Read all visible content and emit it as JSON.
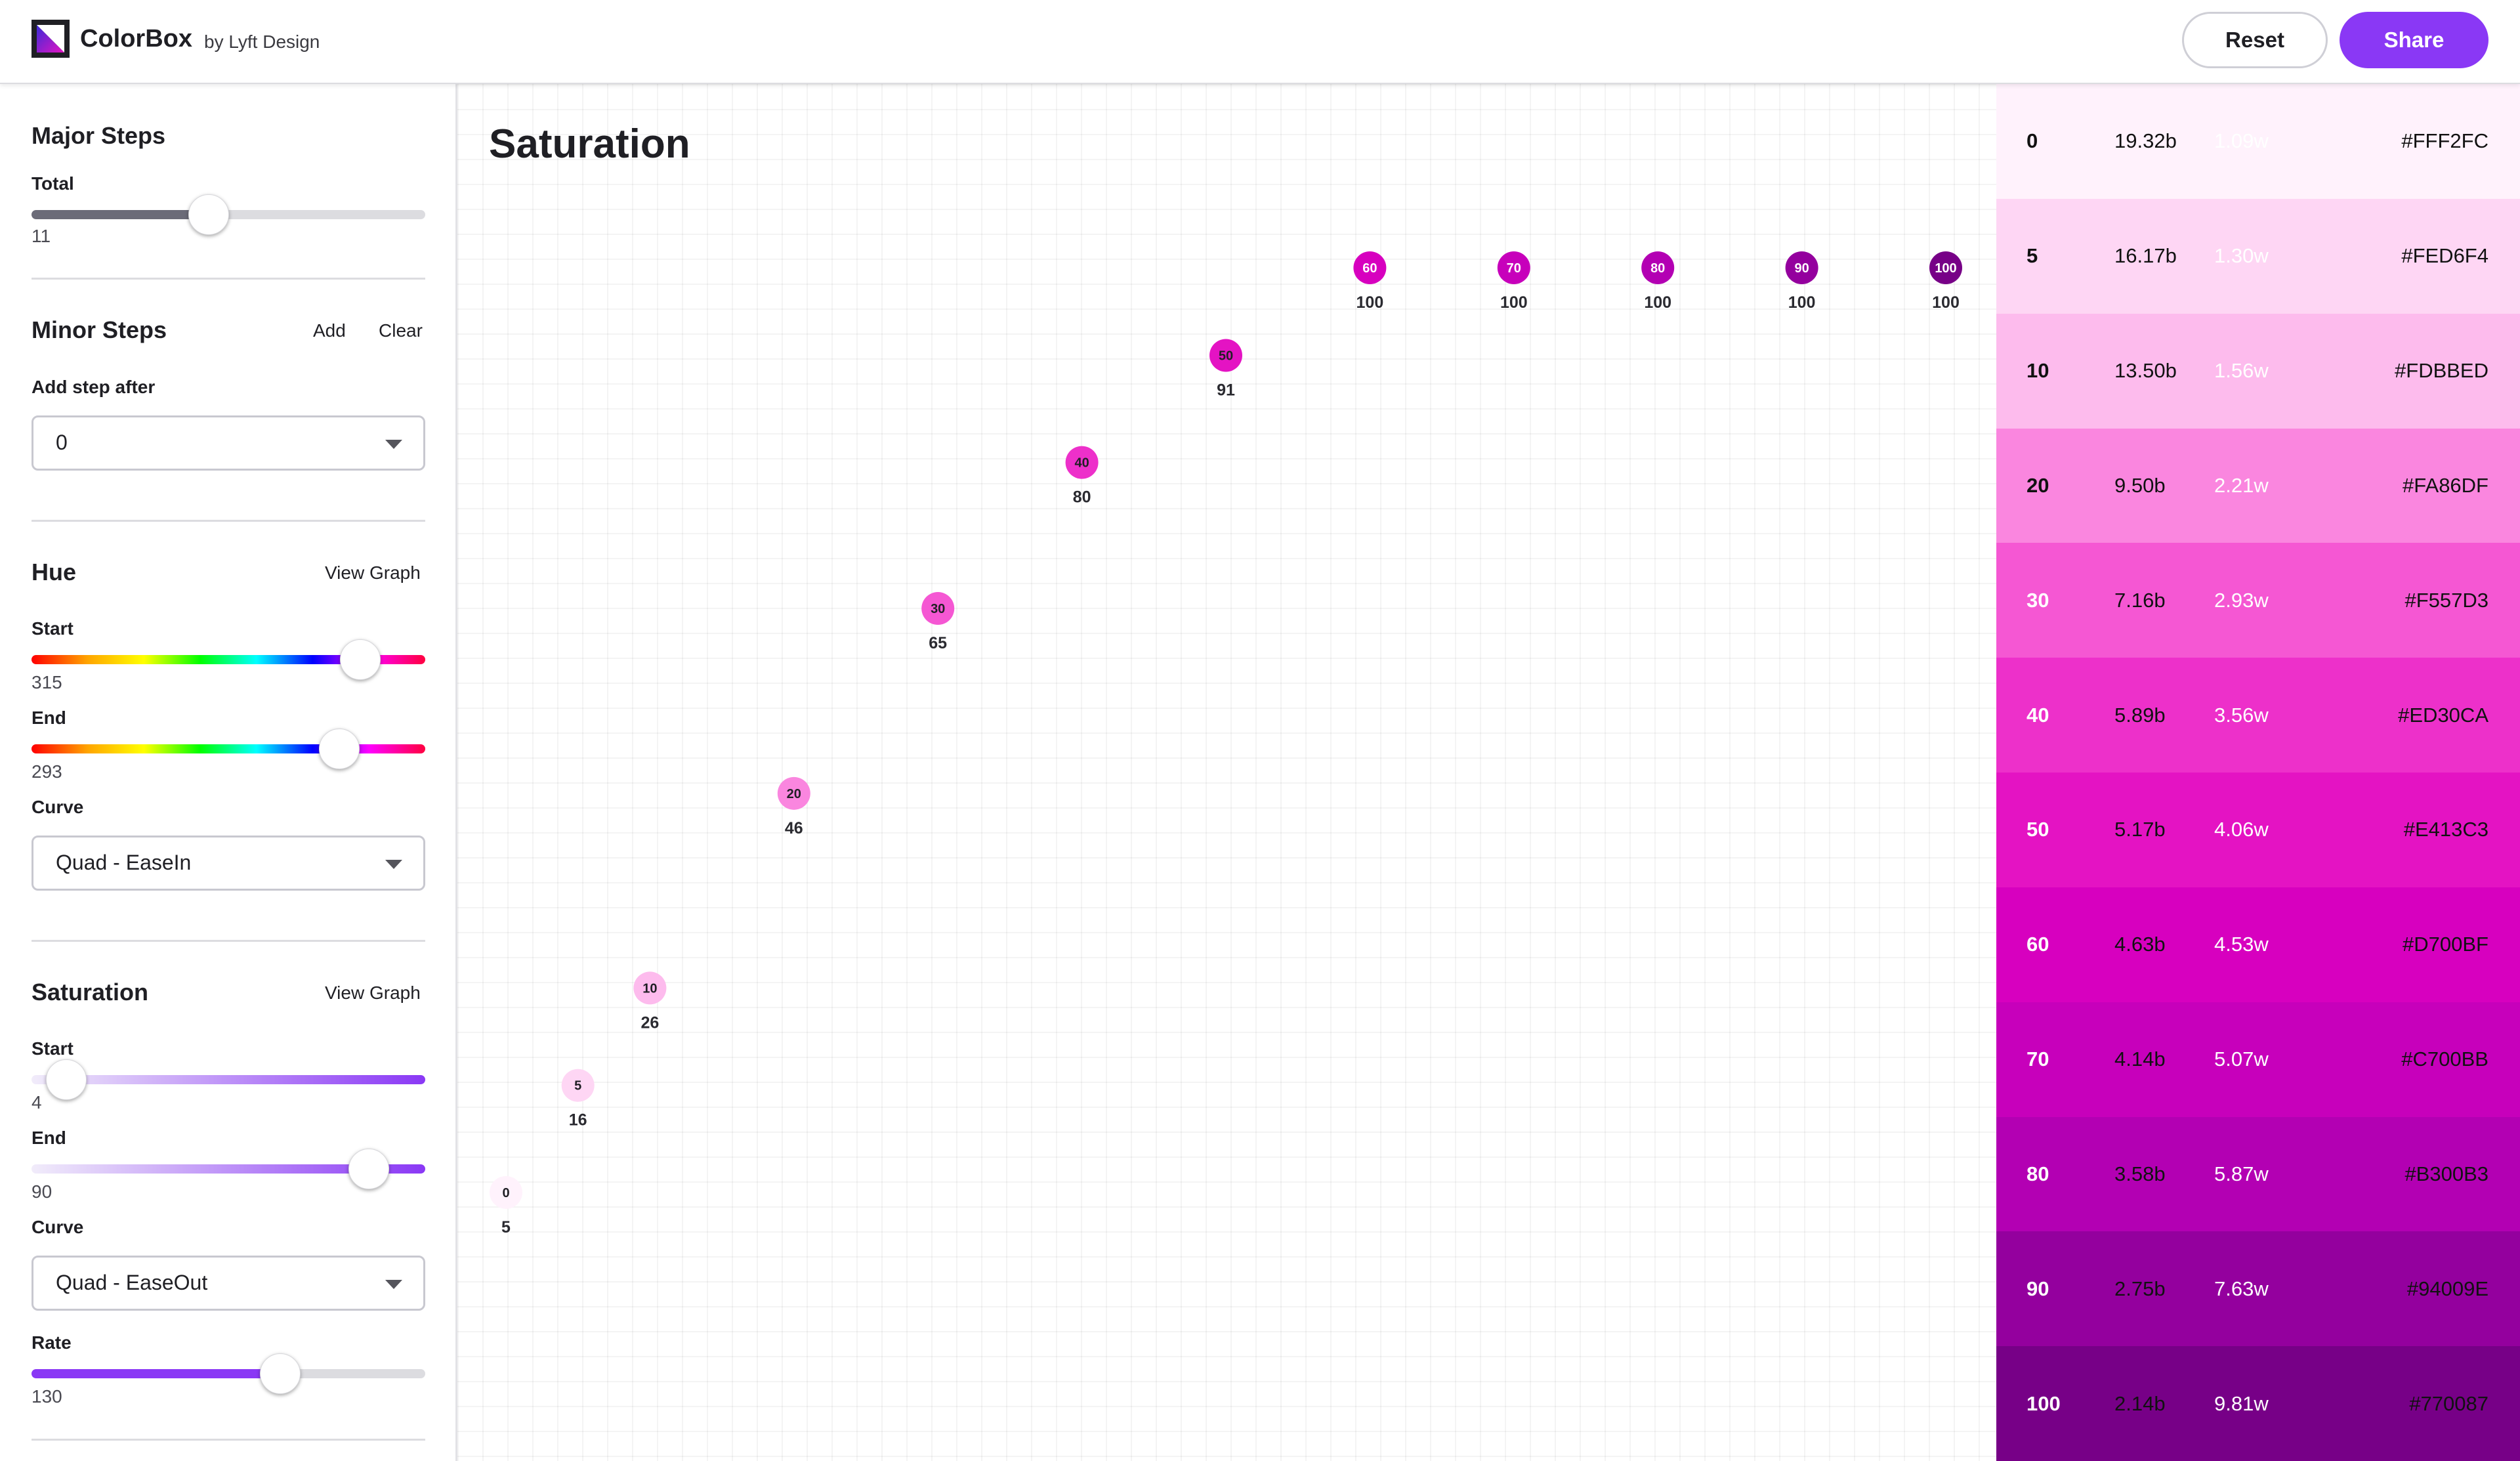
{
  "header": {
    "app_title": "ColorBox",
    "byline": "by Lyft Design",
    "reset_label": "Reset",
    "share_label": "Share",
    "logo_icon": "colorbox-logo-icon"
  },
  "sidebar": {
    "major_steps": {
      "title": "Major Steps",
      "total_label": "Total",
      "total_value": "11",
      "total_numeric": 11
    },
    "minor_steps": {
      "title": "Minor Steps",
      "add_label": "Add",
      "clear_label": "Clear",
      "add_after_label": "Add step after",
      "add_after_value": "0"
    },
    "hue": {
      "title": "Hue",
      "view_graph_label": "View Graph",
      "start_label": "Start",
      "start_value": "315",
      "start_numeric": 315,
      "end_label": "End",
      "end_value": "293",
      "end_numeric": 293,
      "curve_label": "Curve",
      "curve_value": "Quad - EaseIn"
    },
    "saturation": {
      "title": "Saturation",
      "view_graph_label": "View Graph",
      "start_label": "Start",
      "start_value": "4",
      "start_numeric": 4,
      "end_label": "End",
      "end_value": "90",
      "end_numeric": 90,
      "curve_label": "Curve",
      "curve_value": "Quad - EaseOut",
      "rate_label": "Rate",
      "rate_value": "130",
      "rate_numeric": 130
    }
  },
  "graph": {
    "title": "Saturation",
    "points": [
      {
        "step": "0",
        "value": 5,
        "color": "#FFF2FC",
        "label_color": "#1f1f24"
      },
      {
        "step": "5",
        "value": 16,
        "color": "#FED6F4",
        "label_color": "#1f1f24"
      },
      {
        "step": "10",
        "value": 26,
        "color": "#FDBBED",
        "label_color": "#1f1f24"
      },
      {
        "step": "20",
        "value": 46,
        "color": "#FA86DF",
        "label_color": "#1f1f24"
      },
      {
        "step": "30",
        "value": 65,
        "color": "#F557D3",
        "label_color": "#1f1f24"
      },
      {
        "step": "40",
        "value": 80,
        "color": "#ED30CA",
        "label_color": "#1f1f24"
      },
      {
        "step": "50",
        "value": 91,
        "color": "#E413C3",
        "label_color": "#1f1f24"
      },
      {
        "step": "60",
        "value": 100,
        "color": "#D700BF",
        "label_color": "#ffffff"
      },
      {
        "step": "70",
        "value": 100,
        "color": "#C700BB",
        "label_color": "#ffffff"
      },
      {
        "step": "80",
        "value": 100,
        "color": "#B300B3",
        "label_color": "#ffffff"
      },
      {
        "step": "90",
        "value": 100,
        "color": "#94009E",
        "label_color": "#ffffff"
      },
      {
        "step": "100",
        "value": 100,
        "color": "#770087",
        "label_color": "#ffffff"
      }
    ]
  },
  "swatches": [
    {
      "step": "0",
      "contrast_black": "19.32b",
      "contrast_white": "1.09w",
      "hex": "#FFF2FC",
      "bg": "#FFF2FC",
      "step_color": "#111111",
      "black_color": "#111111",
      "white_color": "#ffffff"
    },
    {
      "step": "5",
      "contrast_black": "16.17b",
      "contrast_white": "1.30w",
      "hex": "#FED6F4",
      "bg": "#FED6F4",
      "step_color": "#111111",
      "black_color": "#111111",
      "white_color": "#ffffff"
    },
    {
      "step": "10",
      "contrast_black": "13.50b",
      "contrast_white": "1.56w",
      "hex": "#FDBBED",
      "bg": "#FDBBED",
      "step_color": "#111111",
      "black_color": "#111111",
      "white_color": "#ffffff"
    },
    {
      "step": "20",
      "contrast_black": "9.50b",
      "contrast_white": "2.21w",
      "hex": "#FA86DF",
      "bg": "#FA86DF",
      "step_color": "#111111",
      "black_color": "#111111",
      "white_color": "#ffffff"
    },
    {
      "step": "30",
      "contrast_black": "7.16b",
      "contrast_white": "2.93w",
      "hex": "#F557D3",
      "bg": "#F557D3",
      "step_color": "#ffffff",
      "black_color": "#111111",
      "white_color": "#ffffff"
    },
    {
      "step": "40",
      "contrast_black": "5.89b",
      "contrast_white": "3.56w",
      "hex": "#ED30CA",
      "bg": "#ED30CA",
      "step_color": "#ffffff",
      "black_color": "#111111",
      "white_color": "#ffffff"
    },
    {
      "step": "50",
      "contrast_black": "5.17b",
      "contrast_white": "4.06w",
      "hex": "#E413C3",
      "bg": "#E413C3",
      "step_color": "#ffffff",
      "black_color": "#111111",
      "white_color": "#ffffff"
    },
    {
      "step": "60",
      "contrast_black": "4.63b",
      "contrast_white": "4.53w",
      "hex": "#D700BF",
      "bg": "#D700BF",
      "step_color": "#ffffff",
      "black_color": "#111111",
      "white_color": "#ffffff"
    },
    {
      "step": "70",
      "contrast_black": "4.14b",
      "contrast_white": "5.07w",
      "hex": "#C700BB",
      "bg": "#C700BB",
      "step_color": "#ffffff",
      "black_color": "#111111",
      "white_color": "#ffffff"
    },
    {
      "step": "80",
      "contrast_black": "3.58b",
      "contrast_white": "5.87w",
      "hex": "#B300B3",
      "bg": "#B300B3",
      "step_color": "#ffffff",
      "black_color": "#111111",
      "white_color": "#ffffff"
    },
    {
      "step": "90",
      "contrast_black": "2.75b",
      "contrast_white": "7.63w",
      "hex": "#94009E",
      "bg": "#94009E",
      "step_color": "#ffffff",
      "black_color": "#111111",
      "white_color": "#ffffff"
    },
    {
      "step": "100",
      "contrast_black": "2.14b",
      "contrast_white": "9.81w",
      "hex": "#770087",
      "bg": "#770087",
      "step_color": "#ffffff",
      "black_color": "#111111",
      "white_color": "#ffffff"
    }
  ]
}
